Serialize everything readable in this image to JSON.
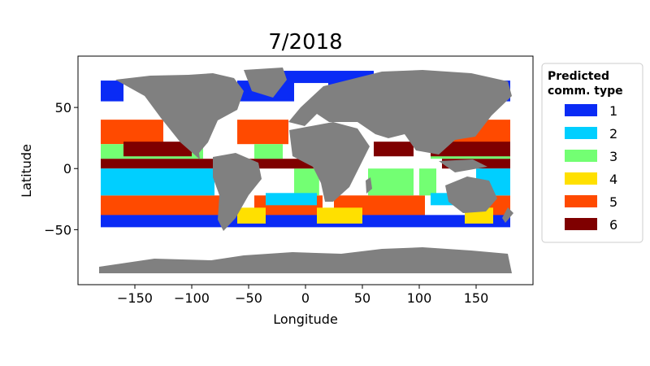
{
  "chart_data": {
    "type": "scatter",
    "title": "7/2018",
    "xlabel": "Longitude",
    "ylabel": "Latitude",
    "xlim": [
      -200,
      200
    ],
    "ylim": [
      -95,
      92
    ],
    "xticks": [
      -150,
      -100,
      -50,
      0,
      50,
      100,
      150
    ],
    "xtick_labels": [
      "−150",
      "−100",
      "−50",
      "0",
      "50",
      "100",
      "150"
    ],
    "yticks": [
      -50,
      0,
      50
    ],
    "ytick_labels": [
      "−50",
      "0",
      "50"
    ],
    "legend": {
      "title_lines": [
        "Predicted",
        "comm. type"
      ],
      "placement": "outside-right",
      "entries": [
        {
          "label": "1",
          "color": "#0A2BF5"
        },
        {
          "label": "2",
          "color": "#00CFFF"
        },
        {
          "label": "3",
          "color": "#73FF73"
        },
        {
          "label": "4",
          "color": "#FFE000"
        },
        {
          "label": "5",
          "color": "#FF4A00"
        },
        {
          "label": "6",
          "color": "#7F0000"
        }
      ]
    },
    "land_color": "#808080",
    "ocean_regions": [
      {
        "type": 1,
        "lat": [
          55,
          72
        ],
        "lon": [
          [
            -180,
            -160
          ],
          [
            -60,
            -10
          ],
          [
            20,
            30
          ],
          [
            150,
            180
          ]
        ]
      },
      {
        "type": 1,
        "lat": [
          70,
          80
        ],
        "lon": [
          [
            -30,
            60
          ]
        ]
      },
      {
        "type": 5,
        "lat": [
          20,
          40
        ],
        "lon": [
          [
            -180,
            -125
          ],
          [
            -60,
            -15
          ],
          [
            125,
            180
          ]
        ]
      },
      {
        "type": 5,
        "lat": [
          -45,
          -22
        ],
        "lon": [
          [
            -180,
            -75
          ],
          [
            -45,
            15
          ],
          [
            25,
            105
          ],
          [
            155,
            180
          ]
        ]
      },
      {
        "type": 3,
        "lat": [
          8,
          20
        ],
        "lon": [
          [
            -180,
            -90
          ],
          [
            -45,
            -20
          ],
          [
            110,
            180
          ]
        ]
      },
      {
        "type": 3,
        "lat": [
          -22,
          0
        ],
        "lon": [
          [
            -10,
            12
          ],
          [
            55,
            95
          ],
          [
            100,
            115
          ]
        ]
      },
      {
        "type": 6,
        "lat": [
          0,
          8
        ],
        "lon": [
          [
            -180,
            -80
          ],
          [
            -50,
            10
          ],
          [
            120,
            180
          ]
        ]
      },
      {
        "type": 6,
        "lat": [
          10,
          22
        ],
        "lon": [
          [
            -160,
            -100
          ],
          [
            60,
            95
          ],
          [
            110,
            180
          ]
        ]
      },
      {
        "type": 2,
        "lat": [
          -22,
          0
        ],
        "lon": [
          [
            -180,
            -80
          ],
          [
            150,
            180
          ]
        ]
      },
      {
        "type": 2,
        "lat": [
          -30,
          -20
        ],
        "lon": [
          [
            -35,
            10
          ],
          [
            110,
            130
          ]
        ]
      },
      {
        "type": 1,
        "lat": [
          -48,
          -38
        ],
        "lon": [
          [
            -180,
            180
          ]
        ]
      },
      {
        "type": 4,
        "lat": [
          -45,
          -32
        ],
        "lon": [
          [
            -60,
            -35
          ],
          [
            10,
            50
          ],
          [
            140,
            165
          ]
        ]
      }
    ]
  }
}
